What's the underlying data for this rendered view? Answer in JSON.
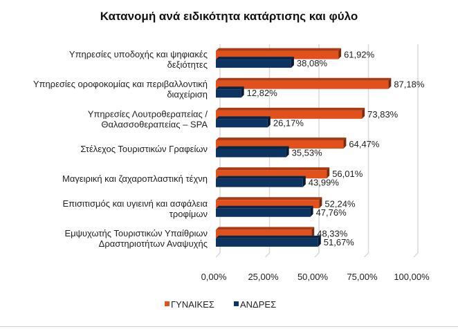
{
  "chart_data": {
    "type": "bar",
    "orientation": "horizontal",
    "style": "3d-clustered",
    "title": "Κατανομή ανά ειδικότητα κατάρτισης και φύλο",
    "categories": [
      [
        "Υπηρεσίες υποδοχής  και ψηφιακές",
        "δεξιότητες"
      ],
      [
        "Υπηρεσίες οροφοκομίας και περιβαλλοντική",
        "διαχείριση"
      ],
      [
        "Υπηρεσίες Λουτροθεραπείας /",
        "Θαλασσοθεραπείας – SPA"
      ],
      [
        "Στέλεχος Τουριστικών Γραφείων"
      ],
      [
        "Μαγειρική και ζαχαροπλαστική τέχνη"
      ],
      [
        "Επισιτισμός  και υγιεινή και ασφάλεια",
        "τροφίμων"
      ],
      [
        "Εμψυχωτής Τουριστικών Υπαίθριων",
        "Δραστηριοτήτων Αναψυχής"
      ]
    ],
    "series": [
      {
        "name": "ΓΥΝΑΙΚΕΣ",
        "color": "#e2501b",
        "values": [
          61.92,
          87.18,
          73.83,
          64.47,
          56.01,
          52.24,
          48.33
        ],
        "labels": [
          "61,92%",
          "87,18%",
          "73,83%",
          "64,47%",
          "56,01%",
          "52,24%",
          "48,33%"
        ]
      },
      {
        "name": "ΑΝΔΡΕΣ",
        "color": "#0d3460",
        "values": [
          38.08,
          12.82,
          26.17,
          35.53,
          43.99,
          47.76,
          51.67
        ],
        "labels": [
          "38,08%",
          "12,82%",
          "26,17%",
          "35,53%",
          "43,99%",
          "47,76%",
          "51,67%"
        ]
      }
    ],
    "xlim": [
      0,
      100
    ],
    "xticks": [
      "0,00%",
      "25,00%",
      "50,00%",
      "75,00%",
      "100,00%"
    ],
    "grid": true,
    "legend_position": "bottom"
  }
}
